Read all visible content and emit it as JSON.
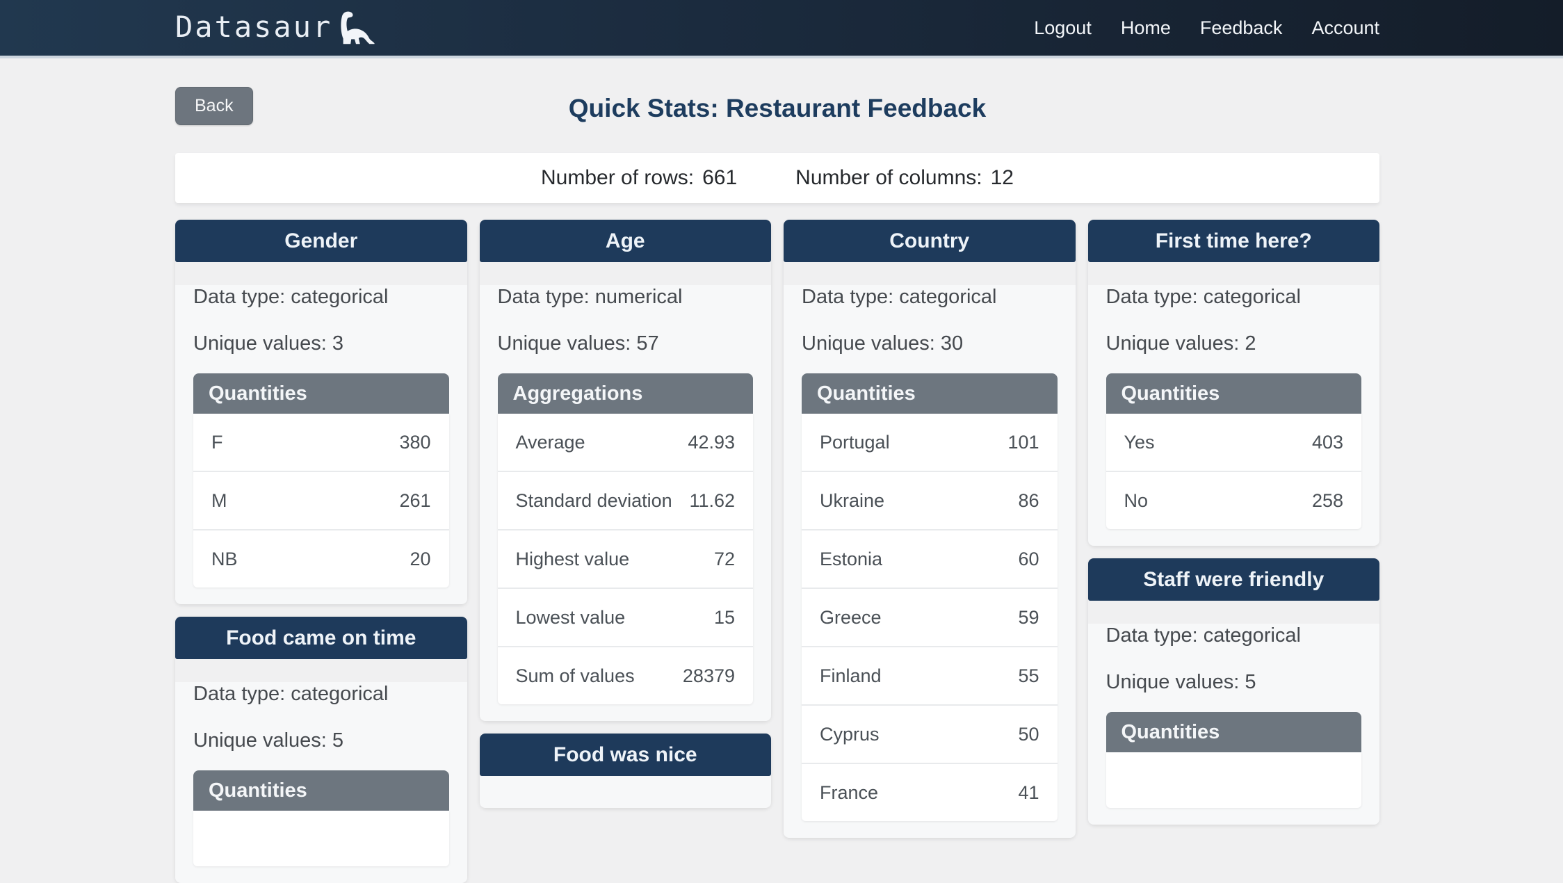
{
  "colors": {
    "navbar_left": "#21384f",
    "navbar_right": "#141d29",
    "accent_navy": "#1e3a5b",
    "table_header_gray": "#6d767f",
    "page_background": "#f0f0f1",
    "title_navy": "#1d3c5e"
  },
  "navbar": {
    "brand": "Datasaur",
    "links": [
      {
        "label": "Logout"
      },
      {
        "label": "Home"
      },
      {
        "label": "Feedback"
      },
      {
        "label": "Account"
      }
    ]
  },
  "toolbar": {
    "back_label": "Back"
  },
  "page": {
    "title": "Quick Stats: Restaurant Feedback"
  },
  "summary": {
    "rows_label": "Number of rows:",
    "rows_value": "661",
    "columns_label": "Number of columns:",
    "columns_value": "12"
  },
  "cards": [
    {
      "id": "gender",
      "column": 1,
      "title": "Gender",
      "meta": [
        "Data type: categorical",
        "Unique values: 3"
      ],
      "table": {
        "title": "Quantities",
        "rows": [
          {
            "label": "F",
            "value": "380"
          },
          {
            "label": "M",
            "value": "261"
          },
          {
            "label": "NB",
            "value": "20"
          }
        ]
      }
    },
    {
      "id": "food-came-on-time",
      "column": 1,
      "title": "Food came on time",
      "meta": [
        "Data type: categorical",
        "Unique values: 5"
      ],
      "table": {
        "title": "Quantities",
        "rows": []
      }
    },
    {
      "id": "age",
      "column": 2,
      "title": "Age",
      "meta": [
        "Data type: numerical",
        "Unique values: 57"
      ],
      "table": {
        "title": "Aggregations",
        "rows": [
          {
            "label": "Average",
            "value": "42.93"
          },
          {
            "label": "Standard deviation",
            "value": "11.62"
          },
          {
            "label": "Highest value",
            "value": "72"
          },
          {
            "label": "Lowest value",
            "value": "15"
          },
          {
            "label": "Sum of values",
            "value": "28379"
          }
        ]
      }
    },
    {
      "id": "food-was-nice",
      "column": 2,
      "title": "Food was nice",
      "meta": [],
      "table": null
    },
    {
      "id": "country",
      "column": 3,
      "title": "Country",
      "meta": [
        "Data type: categorical",
        "Unique values: 30"
      ],
      "table": {
        "title": "Quantities",
        "rows": [
          {
            "label": "Portugal",
            "value": "101"
          },
          {
            "label": "Ukraine",
            "value": "86"
          },
          {
            "label": "Estonia",
            "value": "60"
          },
          {
            "label": "Greece",
            "value": "59"
          },
          {
            "label": "Finland",
            "value": "55"
          },
          {
            "label": "Cyprus",
            "value": "50"
          },
          {
            "label": "France",
            "value": "41"
          }
        ]
      }
    },
    {
      "id": "first-time-here",
      "column": 4,
      "title": "First time here?",
      "meta": [
        "Data type: categorical",
        "Unique values: 2"
      ],
      "table": {
        "title": "Quantities",
        "rows": [
          {
            "label": "Yes",
            "value": "403"
          },
          {
            "label": "No",
            "value": "258"
          }
        ]
      }
    },
    {
      "id": "staff-were-friendly",
      "column": 4,
      "title": "Staff were friendly",
      "meta": [
        "Data type: categorical",
        "Unique values: 5"
      ],
      "table": {
        "title": "Quantities",
        "rows": []
      }
    }
  ]
}
